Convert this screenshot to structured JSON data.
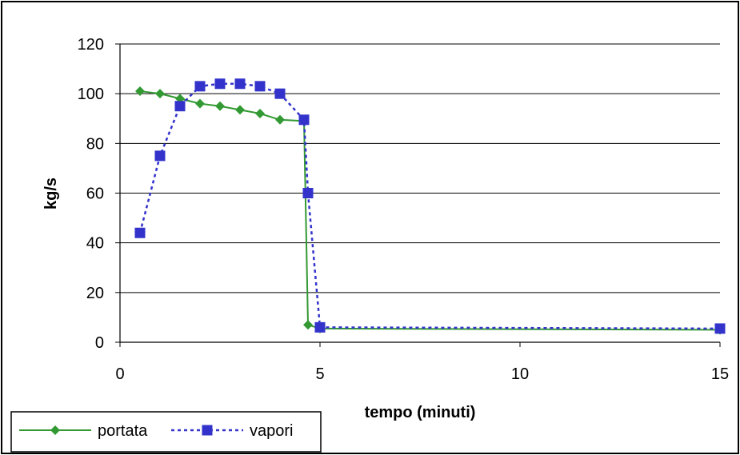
{
  "chart_data": {
    "type": "line",
    "xlabel": "tempo (minuti)",
    "ylabel": "kg/s",
    "xlim": [
      0,
      15
    ],
    "ylim": [
      0,
      120
    ],
    "x_ticks": [
      "0",
      "5",
      "10",
      "15"
    ],
    "y_ticks": [
      "0",
      "20",
      "40",
      "60",
      "80",
      "100",
      "120"
    ],
    "grid": "horizontal",
    "legend_position": "bottom-left",
    "series": [
      {
        "name": "portata",
        "color": "#339933",
        "line_style": "solid",
        "marker": "diamond",
        "x": [
          0.5,
          1.0,
          1.5,
          2.0,
          2.5,
          3.0,
          3.5,
          4.0,
          4.6,
          4.7,
          5.0,
          15.0
        ],
        "y": [
          101,
          100,
          98,
          96,
          95,
          93.5,
          92,
          89.5,
          89,
          7,
          5.5,
          5
        ]
      },
      {
        "name": "vapori",
        "color": "#3333cc",
        "line_style": "dotted",
        "marker": "square",
        "x": [
          0.5,
          1.0,
          1.5,
          2.0,
          2.5,
          3.0,
          3.5,
          4.0,
          4.6,
          4.7,
          5.0,
          15.0
        ],
        "y": [
          44,
          75,
          95,
          103,
          104,
          104,
          103,
          100,
          89.5,
          60,
          6,
          5.5
        ]
      }
    ]
  }
}
